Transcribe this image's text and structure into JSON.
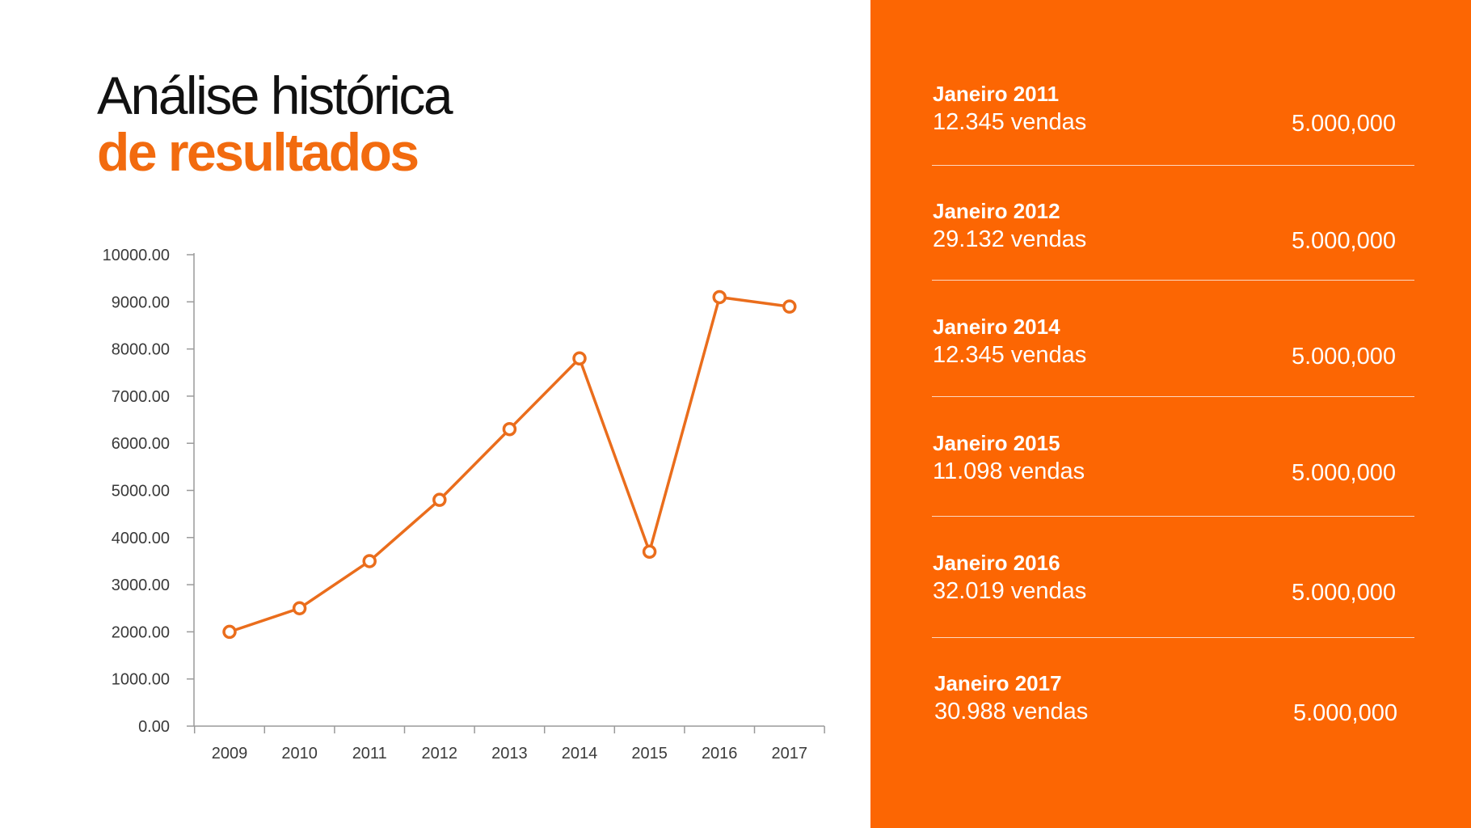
{
  "title": {
    "line1": "Análise histórica",
    "line2": "de resultados"
  },
  "colors": {
    "accent": "#f26b0f",
    "line": "#ea6d1c",
    "panel": "#fc6603"
  },
  "chart_data": {
    "type": "line",
    "title": "",
    "xlabel": "",
    "ylabel": "",
    "ylim": [
      0,
      10000
    ],
    "yticks": [
      "0.00",
      "1000.00",
      "2000.00",
      "3000.00",
      "4000.00",
      "5000.00",
      "6000.00",
      "7000.00",
      "8000.00",
      "9000.00",
      "10000.00"
    ],
    "categories": [
      "2009",
      "2010",
      "2011",
      "2012",
      "2013",
      "2014",
      "2015",
      "2016",
      "2017"
    ],
    "series": [
      {
        "values": [
          2000,
          2500,
          3500,
          4800,
          6300,
          7800,
          3700,
          9100,
          8900
        ]
      }
    ],
    "grid": false,
    "legend": "none"
  },
  "panel": {
    "entries": [
      {
        "label": "Janeiro 2011",
        "sales": "12.345 vendas",
        "amount": "5.000,000"
      },
      {
        "label": "Janeiro 2012",
        "sales": "29.132 vendas",
        "amount": "5.000,000"
      },
      {
        "label": "Janeiro 2014",
        "sales": "12.345 vendas",
        "amount": "5.000,000"
      },
      {
        "label": "Janeiro 2015",
        "sales": "11.098 vendas",
        "amount": "5.000,000"
      },
      {
        "label": "Janeiro 2016",
        "sales": "32.019 vendas",
        "amount": "5.000,000"
      },
      {
        "label": "Janeiro 2017",
        "sales": "30.988 vendas",
        "amount": "5.000,000"
      }
    ]
  }
}
